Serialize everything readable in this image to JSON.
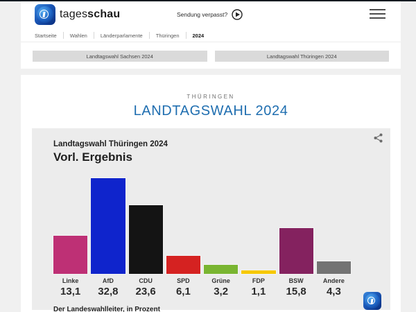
{
  "header": {
    "brand_regular": "tages",
    "brand_bold": "schau",
    "missed_broadcast_label": "Sendung verpasst?"
  },
  "breadcrumb": {
    "items": [
      "Startseite",
      "Wahlen",
      "Länderparlamente",
      "Thüringen",
      "2024"
    ]
  },
  "tabs": [
    {
      "label": "Landtagswahl Sachsen 2024"
    },
    {
      "label": "Landtagswahl Thüringen 2024"
    }
  ],
  "page": {
    "kicker": "THÜRINGEN",
    "title": "LANDTAGSWAHL 2024"
  },
  "chart_data": {
    "type": "bar",
    "title": "Landtagswahl Thüringen 2024",
    "subtitle": "Vorl. Ergebnis",
    "source_note": "Der Landeswahlleiter, in Prozent",
    "categories": [
      "Linke",
      "AfD",
      "CDU",
      "SPD",
      "Grüne",
      "FDP",
      "BSW",
      "Andere"
    ],
    "values": [
      13.1,
      32.8,
      23.6,
      6.1,
      3.2,
      1.1,
      15.8,
      4.3
    ],
    "value_labels": [
      "13,1",
      "32,8",
      "23,6",
      "6,1",
      "3,2",
      "1,1",
      "15,8",
      "4,3"
    ],
    "colors": [
      "#be3075",
      "#0f24cc",
      "#141414",
      "#d52221",
      "#79b531",
      "#f6c800",
      "#84225f",
      "#737373"
    ],
    "unit": "percent",
    "ylim": [
      0,
      35
    ],
    "grid": false,
    "legend": false
  },
  "colors": {
    "headline_blue": "#1f6eb0",
    "card_background": "#ececec",
    "page_background": "#f0f0f0",
    "tab_background": "#dadada"
  }
}
